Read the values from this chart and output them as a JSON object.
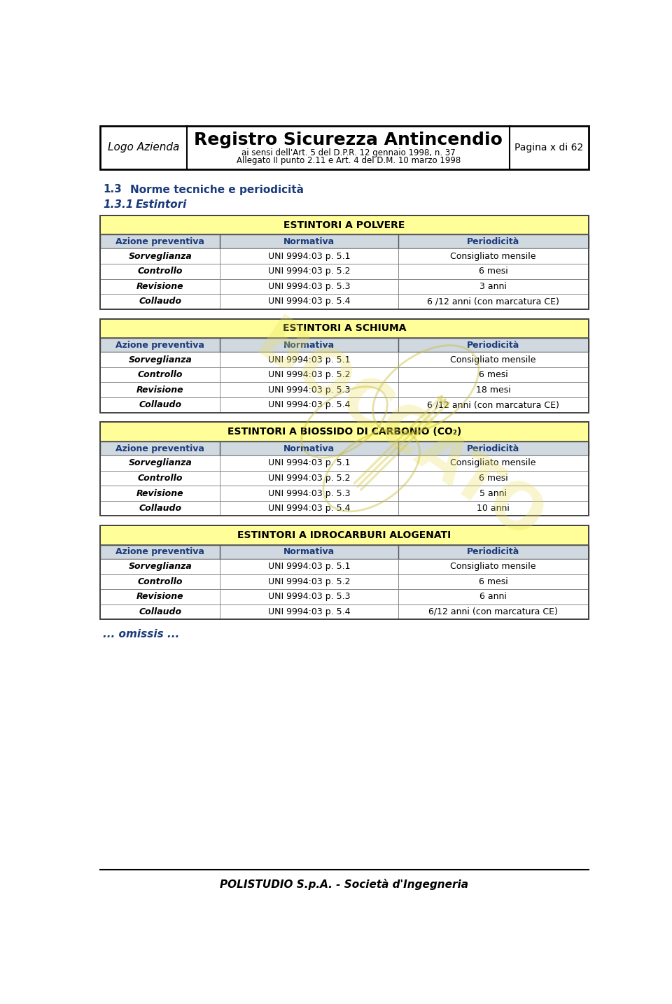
{
  "page_title": "Registro Sicurezza Antincendio",
  "page_subtitle1": "ai sensi dell'Art. 5 del D.P.R. 12 gennaio 1998, n. 37",
  "page_subtitle2": "Allegato II punto 2.11 e Art. 4 del D.M. 10 marzo 1998",
  "logo_text": "Logo Azienda",
  "page_num": "Pagina x di 62",
  "section": "1.3",
  "section_title": "Norme tecniche e periodicità",
  "subsection": "1.3.1",
  "subsection_title": "Estintori",
  "footer": "POLISTUDIO S.p.A. - Società d'Ingegneria",
  "omissis": "... omissis ...",
  "col_headers": [
    "Azione preventiva",
    "Normativa",
    "Periodicità"
  ],
  "tables": [
    {
      "title": "ESTINTORI A POLVERE",
      "rows": [
        [
          "Sorveglianza",
          "UNI 9994:03 p. 5.1",
          "Consigliato mensile"
        ],
        [
          "Controllo",
          "UNI 9994:03 p. 5.2",
          "6 mesi"
        ],
        [
          "Revisione",
          "UNI 9994:03 p. 5.3",
          "3 anni"
        ],
        [
          "Collaudo",
          "UNI 9994:03 p. 5.4",
          "6 /12 anni (con marcatura CE)"
        ]
      ]
    },
    {
      "title": "ESTINTORI A SCHIUMA",
      "rows": [
        [
          "Sorveglianza",
          "UNI 9994:03 p. 5.1",
          "Consigliato mensile"
        ],
        [
          "Controllo",
          "UNI 9994:03 p. 5.2",
          "6 mesi"
        ],
        [
          "Revisione",
          "UNI 9994:03 p. 5.3",
          "18 mesi"
        ],
        [
          "Collaudo",
          "UNI 9994:03 p. 5.4",
          "6 /12 anni (con marcatura CE)"
        ]
      ]
    },
    {
      "title": "ESTINTORI A BIOSSIDO DI CARBONIO (CO₂)",
      "rows": [
        [
          "Sorveglianza",
          "UNI 9994:03 p. 5.1",
          "Consigliato mensile"
        ],
        [
          "Controllo",
          "UNI 9994:03 p. 5.2",
          "6 mesi"
        ],
        [
          "Revisione",
          "UNI 9994:03 p. 5.3",
          "5 anni"
        ],
        [
          "Collaudo",
          "UNI 9994:03 p. 5.4",
          "10 anni"
        ]
      ]
    },
    {
      "title": "ESTINTORI A IDROCARBURI ALOGENATI",
      "rows": [
        [
          "Sorveglianza",
          "UNI 9994:03 p. 5.1",
          "Consigliato mensile"
        ],
        [
          "Controllo",
          "UNI 9994:03 p. 5.2",
          "6 mesi"
        ],
        [
          "Revisione",
          "UNI 9994:03 p. 5.3",
          "6 anni"
        ],
        [
          "Collaudo",
          "UNI 9994:03 p. 5.4",
          "6/12 anni (con marcatura CE)"
        ]
      ]
    }
  ],
  "colors": {
    "yellow_header": "#FFFE99",
    "col_header_bg": "#D0D8E0",
    "white": "#FFFFFF",
    "border_dark": "#444444",
    "border_mid": "#777777",
    "text_black": "#000000",
    "blue_text": "#1A3A7A",
    "section_blue": "#1A3A7A",
    "page_bg": "#FFFFFF"
  }
}
